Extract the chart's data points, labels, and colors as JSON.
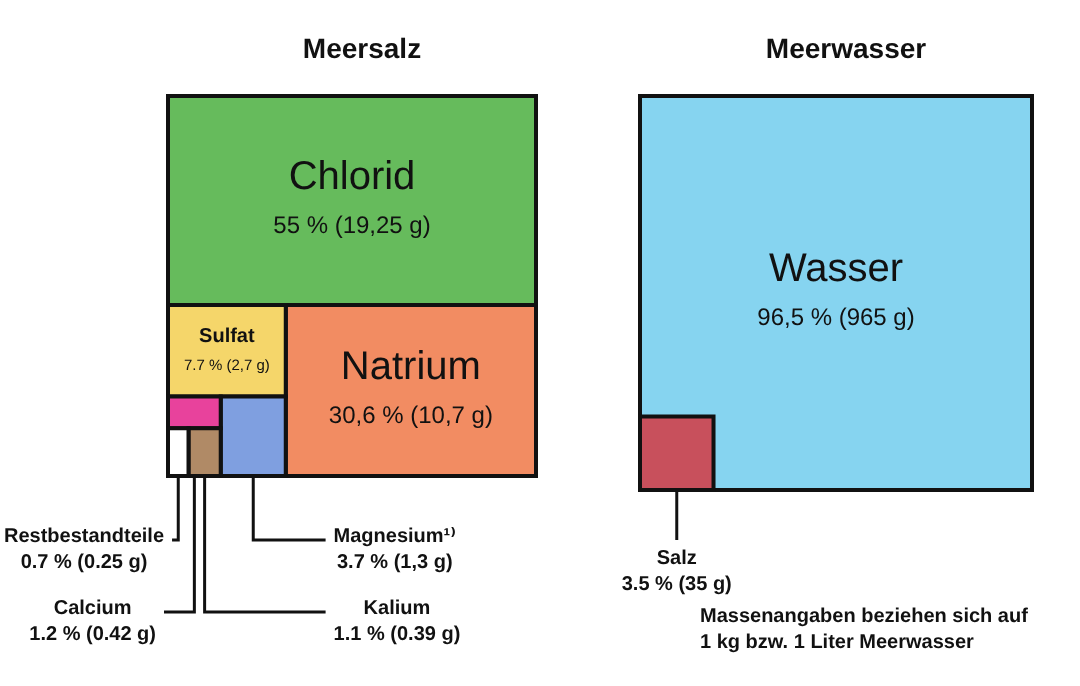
{
  "chart_data": [
    {
      "type": "other",
      "title": "Meersalz",
      "categories": [
        "Chlorid",
        "Natrium",
        "Sulfat",
        "Magnesium¹⁾",
        "Calcium",
        "Kalium",
        "Restbestandteile"
      ],
      "values": [
        55,
        30.6,
        7.7,
        3.7,
        1.2,
        1.1,
        0.7
      ],
      "value_labels": [
        "55 % (19,25 g)",
        "30,6 % (10,7 g)",
        "7.7 % (2,7 g)",
        "3.7 % (1,3 g)",
        "1.2 % (0.42 g)",
        "1.1 % (0.39 g)",
        "0.7 % (0.25 g)"
      ],
      "colors": [
        "#66bb5c",
        "#f28c62",
        "#f5d66a",
        "#7f9fe0",
        "#e8429c",
        "#b08a66",
        "#ffffff"
      ]
    },
    {
      "type": "other",
      "title": "Meerwasser",
      "categories": [
        "Wasser",
        "Salz"
      ],
      "values": [
        96.5,
        3.5
      ],
      "value_labels": [
        "96,5 % (965 g)",
        "3.5 % (35 g)"
      ],
      "colors": [
        "#86d4f0",
        "#c8505c"
      ],
      "annotations": [
        "Massenangaben beziehen sich auf 1 kg bzw. 1 Liter Meerwasser"
      ]
    }
  ]
}
